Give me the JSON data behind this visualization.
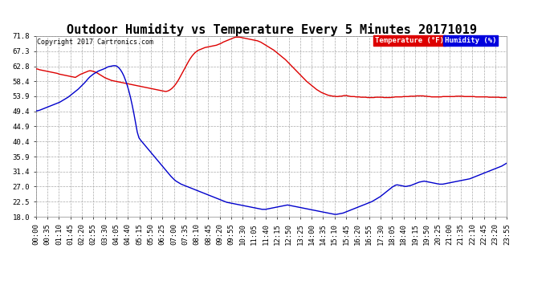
{
  "title": "Outdoor Humidity vs Temperature Every 5 Minutes 20171019",
  "copyright": "Copyright 2017 Cartronics.com",
  "temp_label": "Temperature (°F)",
  "humidity_label": "Humidity (%)",
  "temp_color": "#dd0000",
  "humidity_color": "#0000cc",
  "temp_label_bg": "#dd0000",
  "humidity_label_bg": "#0000dd",
  "ylim": [
    18.0,
    71.8
  ],
  "yticks": [
    18.0,
    22.5,
    27.0,
    31.4,
    35.9,
    40.4,
    44.9,
    49.4,
    53.9,
    58.4,
    62.8,
    67.3,
    71.8
  ],
  "background_color": "#ffffff",
  "grid_color": "#aaaaaa",
  "title_fontsize": 11,
  "tick_fontsize": 6.5,
  "n_points": 288,
  "temp_data": [
    62.0,
    62.0,
    61.8,
    61.7,
    61.6,
    61.5,
    61.4,
    61.3,
    61.2,
    61.1,
    61.0,
    60.9,
    60.8,
    60.7,
    60.5,
    60.4,
    60.3,
    60.2,
    60.1,
    60.0,
    59.9,
    59.8,
    59.7,
    59.6,
    59.5,
    59.8,
    60.1,
    60.4,
    60.6,
    60.8,
    61.0,
    61.2,
    61.4,
    61.5,
    61.4,
    61.3,
    61.1,
    60.9,
    60.6,
    60.3,
    60.0,
    59.7,
    59.4,
    59.2,
    59.0,
    58.8,
    58.6,
    58.5,
    58.4,
    58.3,
    58.2,
    58.1,
    58.0,
    57.9,
    57.8,
    57.7,
    57.6,
    57.5,
    57.4,
    57.3,
    57.2,
    57.1,
    57.0,
    56.9,
    56.8,
    56.7,
    56.6,
    56.5,
    56.4,
    56.3,
    56.2,
    56.1,
    56.0,
    55.9,
    55.8,
    55.7,
    55.6,
    55.5,
    55.4,
    55.3,
    55.4,
    55.6,
    55.9,
    56.3,
    56.8,
    57.4,
    58.1,
    58.9,
    59.8,
    60.7,
    61.6,
    62.5,
    63.4,
    64.3,
    65.1,
    65.8,
    66.4,
    66.9,
    67.3,
    67.6,
    67.8,
    68.0,
    68.2,
    68.4,
    68.5,
    68.6,
    68.7,
    68.8,
    68.9,
    69.0,
    69.1,
    69.3,
    69.5,
    69.7,
    70.0,
    70.2,
    70.4,
    70.6,
    70.8,
    71.0,
    71.2,
    71.4,
    71.5,
    71.5,
    71.5,
    71.4,
    71.3,
    71.2,
    71.1,
    71.0,
    70.9,
    70.8,
    70.7,
    70.6,
    70.5,
    70.4,
    70.2,
    70.0,
    69.7,
    69.4,
    69.1,
    68.8,
    68.5,
    68.2,
    67.9,
    67.6,
    67.2,
    66.8,
    66.4,
    66.0,
    65.6,
    65.2,
    64.8,
    64.3,
    63.8,
    63.3,
    62.8,
    62.3,
    61.8,
    61.3,
    60.8,
    60.3,
    59.8,
    59.3,
    58.8,
    58.3,
    57.9,
    57.5,
    57.1,
    56.7,
    56.3,
    55.9,
    55.6,
    55.3,
    55.0,
    54.8,
    54.6,
    54.4,
    54.2,
    54.1,
    54.0,
    53.9,
    53.9,
    53.8,
    53.8,
    53.9,
    53.9,
    54.0,
    54.1,
    54.1,
    54.0,
    53.9,
    53.8,
    53.8,
    53.8,
    53.7,
    53.7,
    53.7,
    53.6,
    53.6,
    53.6,
    53.6,
    53.5,
    53.5,
    53.5,
    53.5,
    53.5,
    53.6,
    53.6,
    53.6,
    53.6,
    53.6,
    53.5,
    53.5,
    53.5,
    53.5,
    53.5,
    53.6,
    53.6,
    53.7,
    53.7,
    53.7,
    53.7,
    53.7,
    53.8,
    53.8,
    53.8,
    53.8,
    53.9,
    53.9,
    53.9,
    53.9,
    54.0,
    54.0,
    54.0,
    54.0,
    54.0,
    53.9,
    53.9,
    53.8,
    53.8,
    53.7,
    53.7,
    53.7,
    53.7,
    53.7,
    53.7,
    53.7,
    53.8,
    53.8,
    53.8,
    53.8,
    53.8,
    53.8,
    53.8,
    53.8,
    53.9,
    53.9,
    53.9,
    53.9,
    53.9,
    53.8,
    53.8,
    53.8,
    53.8,
    53.8,
    53.8,
    53.8,
    53.7,
    53.7,
    53.7,
    53.7,
    53.7,
    53.7,
    53.7,
    53.7,
    53.6,
    53.6,
    53.6,
    53.6,
    53.6,
    53.6,
    53.6,
    53.5,
    53.5,
    53.5,
    53.5,
    53.5
  ],
  "humidity_data": [
    49.5,
    49.6,
    49.7,
    49.9,
    50.1,
    50.3,
    50.5,
    50.7,
    50.9,
    51.1,
    51.3,
    51.5,
    51.7,
    51.9,
    52.1,
    52.4,
    52.7,
    53.0,
    53.3,
    53.6,
    54.0,
    54.4,
    54.8,
    55.2,
    55.6,
    56.0,
    56.5,
    57.0,
    57.5,
    58.0,
    58.6,
    59.2,
    59.7,
    60.1,
    60.5,
    60.8,
    61.1,
    61.4,
    61.6,
    61.8,
    62.0,
    62.2,
    62.5,
    62.7,
    62.8,
    62.9,
    63.0,
    63.0,
    62.8,
    62.4,
    61.8,
    61.0,
    60.0,
    58.7,
    57.2,
    55.5,
    53.5,
    51.2,
    48.7,
    46.0,
    43.2,
    41.5,
    40.8,
    40.2,
    39.6,
    39.0,
    38.4,
    37.8,
    37.2,
    36.6,
    36.0,
    35.4,
    34.8,
    34.2,
    33.6,
    33.0,
    32.4,
    31.8,
    31.2,
    30.6,
    30.0,
    29.5,
    29.0,
    28.6,
    28.3,
    28.0,
    27.7,
    27.5,
    27.3,
    27.1,
    26.9,
    26.7,
    26.5,
    26.3,
    26.1,
    25.9,
    25.7,
    25.5,
    25.3,
    25.1,
    24.9,
    24.7,
    24.5,
    24.3,
    24.1,
    23.9,
    23.7,
    23.5,
    23.3,
    23.1,
    22.9,
    22.7,
    22.5,
    22.3,
    22.2,
    22.1,
    22.0,
    21.9,
    21.8,
    21.7,
    21.6,
    21.5,
    21.4,
    21.3,
    21.2,
    21.1,
    21.0,
    20.9,
    20.8,
    20.7,
    20.6,
    20.5,
    20.4,
    20.3,
    20.2,
    20.2,
    20.2,
    20.3,
    20.4,
    20.5,
    20.6,
    20.7,
    20.8,
    20.9,
    21.0,
    21.1,
    21.2,
    21.3,
    21.4,
    21.5,
    21.4,
    21.3,
    21.2,
    21.1,
    21.0,
    20.9,
    20.8,
    20.7,
    20.6,
    20.5,
    20.4,
    20.3,
    20.2,
    20.1,
    20.0,
    19.9,
    19.8,
    19.7,
    19.6,
    19.5,
    19.4,
    19.3,
    19.2,
    19.1,
    19.0,
    18.9,
    18.8,
    18.7,
    18.7,
    18.8,
    18.9,
    19.0,
    19.1,
    19.3,
    19.5,
    19.7,
    19.9,
    20.1,
    20.3,
    20.5,
    20.7,
    20.9,
    21.1,
    21.3,
    21.5,
    21.7,
    21.9,
    22.1,
    22.3,
    22.5,
    22.8,
    23.1,
    23.4,
    23.7,
    24.0,
    24.4,
    24.8,
    25.2,
    25.6,
    26.0,
    26.4,
    26.8,
    27.1,
    27.4,
    27.5,
    27.4,
    27.3,
    27.2,
    27.1,
    27.0,
    27.1,
    27.2,
    27.3,
    27.5,
    27.7,
    27.9,
    28.1,
    28.3,
    28.4,
    28.5,
    28.6,
    28.5,
    28.4,
    28.3,
    28.2,
    28.1,
    28.0,
    27.9,
    27.8,
    27.7,
    27.7,
    27.7,
    27.8,
    27.9,
    28.0,
    28.1,
    28.2,
    28.3,
    28.4,
    28.5,
    28.6,
    28.7,
    28.8,
    28.9,
    29.0,
    29.1,
    29.2,
    29.3,
    29.5,
    29.7,
    29.9,
    30.1,
    30.3,
    30.5,
    30.7,
    30.9,
    31.1,
    31.3,
    31.5,
    31.7,
    31.9,
    32.1,
    32.3,
    32.5,
    32.7,
    32.9,
    33.1,
    33.4,
    33.7,
    34.0
  ]
}
